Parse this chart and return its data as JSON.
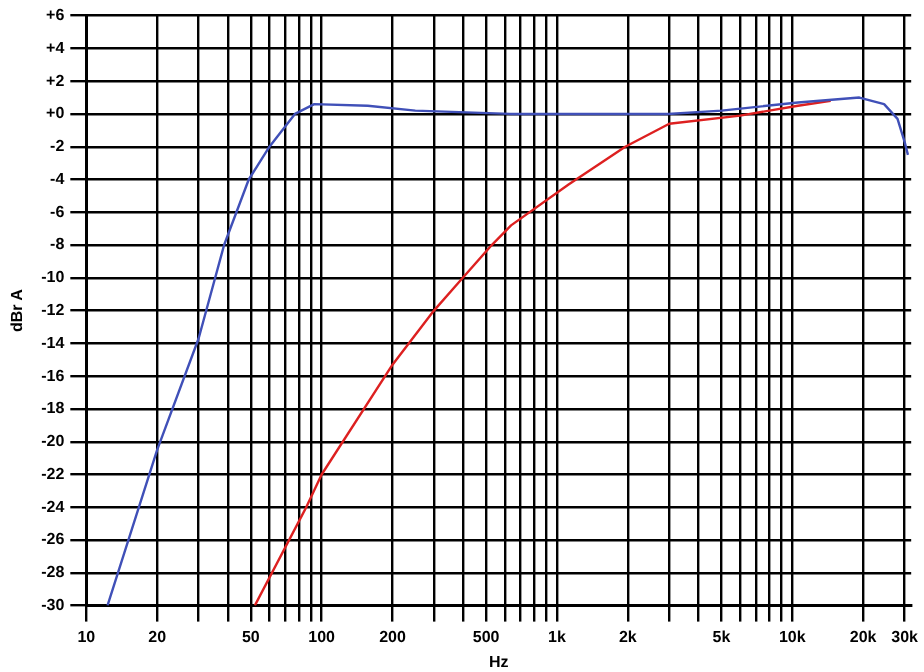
{
  "chart_data": {
    "type": "line",
    "xlabel": "Hz",
    "ylabel": "dBr A",
    "log": "x",
    "grid": true,
    "legend": false,
    "marker": "none",
    "line_style": "solid",
    "xlim": [
      10,
      32000
    ],
    "ylim": [
      -30,
      6
    ],
    "xticks": [
      10,
      20,
      {
        "value": 30,
        "label": null
      },
      {
        "value": 40,
        "label": null
      },
      50,
      {
        "value": 60,
        "label": null
      },
      {
        "value": 70,
        "label": null
      },
      {
        "value": 80,
        "label": null
      },
      {
        "value": 90,
        "label": null
      },
      100,
      200,
      {
        "value": 300,
        "label": null
      },
      {
        "value": 400,
        "label": null
      },
      500,
      {
        "value": 600,
        "label": null
      },
      {
        "value": 700,
        "label": null
      },
      {
        "value": 800,
        "label": null
      },
      {
        "value": 900,
        "label": null
      },
      {
        "value": 1000,
        "label": "1k"
      },
      {
        "value": 2000,
        "label": "2k"
      },
      {
        "value": 3000,
        "label": null
      },
      {
        "value": 4000,
        "label": null
      },
      {
        "value": 5000,
        "label": "5k"
      },
      {
        "value": 6000,
        "label": null
      },
      {
        "value": 7000,
        "label": null
      },
      {
        "value": 8000,
        "label": null
      },
      {
        "value": 9000,
        "label": null
      },
      {
        "value": 10000,
        "label": "10k"
      },
      {
        "value": 20000,
        "label": "20k"
      },
      {
        "value": 30000,
        "label": "30k"
      }
    ],
    "yticks": [
      {
        "value": 6,
        "label": "+6"
      },
      {
        "value": 4,
        "label": "+4"
      },
      {
        "value": 2,
        "label": "+2"
      },
      {
        "value": 0,
        "label": "+0"
      },
      -2,
      -4,
      -6,
      -8,
      -10,
      -12,
      -14,
      -16,
      -18,
      -20,
      -22,
      -24,
      -26,
      -28,
      -30
    ],
    "series": [
      {
        "color": "#4050b8",
        "x": [
          12.3,
          20,
          30,
          38.5,
          49,
          60,
          77,
          93,
          157,
          250,
          638,
          1626,
          2966,
          5010,
          10570,
          19270,
          24550,
          28000,
          30000,
          31000
        ],
        "values": [
          -30,
          -20.5,
          -13.7,
          -8,
          -4,
          -2,
          0,
          0.6,
          0.5,
          0.2,
          0,
          0,
          0,
          0.2,
          0.7,
          1,
          0.6,
          -0.3,
          -1.7,
          -2.5
        ]
      },
      {
        "color": "#dd2020",
        "x": [
          52,
          86,
          100,
          200,
          300,
          398,
          528,
          638,
          1120,
          1950,
          3000,
          6000,
          10570,
          14560
        ],
        "values": [
          -30,
          -24,
          -22,
          -15.3,
          -12,
          -10,
          -8,
          -6.8,
          -4.3,
          -2,
          -0.6,
          -0.1,
          0.5,
          0.8
        ]
      }
    ]
  }
}
